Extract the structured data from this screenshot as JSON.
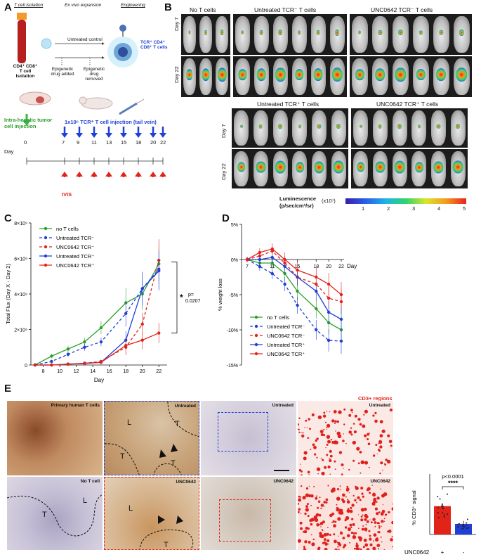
{
  "panelA": {
    "label": "A",
    "headers": {
      "isolation": "T cell isolation",
      "expansion": "Ex vivo expansion",
      "engineering": "Engineering"
    },
    "cd4_iso": "CD4⁺ CD8⁺ T cell Isolation",
    "untreated_control": "Untreated control",
    "drug_added": "Epigenetic drug added",
    "drug_removed": "Epigenetic drug removed",
    "tcr_cells": "TCR⁺ CD4⁺ CD8⁺ T cells",
    "intra_hepatic": "Intra-hepatic tumor cell injection",
    "injection": "1x10⁶ TCR⁺ T cell injection (tail vein)",
    "day_label": "Day",
    "days": [
      "0",
      "7",
      "9",
      "11",
      "13",
      "15",
      "18",
      "20",
      "22"
    ],
    "ivis": "IVIS"
  },
  "panelB": {
    "label": "B",
    "groups_top": [
      "No T cells",
      "Untreated TCR⁻ T cells",
      "UNC0642 TCR⁻ T cells"
    ],
    "groups_bottom": [
      "Untreated TCR⁺ T cells",
      "UNC0642 TCR⁺ T cells"
    ],
    "day7": "Day 7",
    "day22": "Day 22",
    "colorbar_title": "Luminescence",
    "colorbar_unit": "(p/sec/cm²/sr)",
    "colorbar_scale": "(x10⁷)",
    "colorbar_ticks": [
      "1",
      "2",
      "3",
      "4",
      "5"
    ]
  },
  "panelC": {
    "label": "C",
    "chart_data": {
      "type": "line",
      "ylabel": "Total Flux (Day X - Day 2)",
      "xlabel": "Day",
      "x": [
        7,
        9,
        11,
        13,
        15,
        18,
        20,
        22
      ],
      "xticks": [
        "8",
        "10",
        "12",
        "14",
        "16",
        "18",
        "20",
        "22"
      ],
      "xlim": [
        6.5,
        23
      ],
      "ylim": [
        0,
        8000000000
      ],
      "yticks": [
        "0",
        "2×10⁹",
        "4×10⁹",
        "6×10⁹",
        "8×10⁹"
      ],
      "legend": "top-left",
      "annotation": {
        "star": "*",
        "p": "p=",
        "pval": "0.0207"
      },
      "series": [
        {
          "name": "no T cells",
          "color": "#2aa02a",
          "dash": false,
          "values": [
            0,
            500000000,
            900000000,
            1300000000,
            2100000000,
            3500000000,
            4000000000,
            5700000000
          ]
        },
        {
          "name": "Untreated TCR⁻",
          "color": "#1f3fd6",
          "dash": true,
          "values": [
            0,
            200000000,
            600000000,
            1000000000,
            1300000000,
            2900000000,
            4300000000,
            5400000000
          ]
        },
        {
          "name": "UNC0642 TCR⁻",
          "color": "#e2231a",
          "dash": true,
          "values": [
            0,
            0,
            50000000,
            100000000,
            200000000,
            1000000000,
            2300000000,
            5900000000
          ]
        },
        {
          "name": "Untreated TCR⁺",
          "color": "#1f3fd6",
          "dash": false,
          "values": [
            0,
            0,
            50000000,
            100000000,
            150000000,
            1400000000,
            4300000000,
            5300000000
          ]
        },
        {
          "name": "UNC0642 TCR⁺",
          "color": "#e2231a",
          "dash": false,
          "values": [
            0,
            0,
            50000000,
            80000000,
            150000000,
            1100000000,
            1400000000,
            1800000000
          ]
        }
      ]
    }
  },
  "panelD": {
    "label": "D",
    "chart_data": {
      "type": "line",
      "ylabel": "% weight loss",
      "xlabel": "Day",
      "x": [
        7,
        9,
        11,
        13,
        15,
        18,
        20,
        22
      ],
      "xticks": [
        "7",
        "11",
        "15",
        "18",
        "20",
        "22"
      ],
      "ylim": [
        -15,
        5
      ],
      "yticks": [
        "5%",
        "0%",
        "-5%",
        "-10%",
        "-15%"
      ],
      "legend": "bottom-left",
      "series": [
        {
          "name": "no T cells",
          "color": "#2aa02a",
          "dash": false,
          "values": [
            0,
            -0.5,
            -0.5,
            -2,
            -4.5,
            -7,
            -9,
            -10
          ]
        },
        {
          "name": "Untreated TCR⁻",
          "color": "#1f3fd6",
          "dash": true,
          "values": [
            0,
            -1,
            -2,
            -3.5,
            -6.5,
            -10,
            -11.5,
            -11.6
          ]
        },
        {
          "name": "UNC0642 TCR⁻",
          "color": "#e2231a",
          "dash": true,
          "values": [
            0,
            0.5,
            1.2,
            -0.5,
            -2.5,
            -3.5,
            -5.5,
            -6
          ]
        },
        {
          "name": "Untreated TCR⁺",
          "color": "#1f3fd6",
          "dash": false,
          "values": [
            0,
            0,
            0.3,
            -1,
            -2.5,
            -4.5,
            -7.5,
            -8.5
          ]
        },
        {
          "name": "UNC0642 TCR⁺",
          "color": "#e2231a",
          "dash": false,
          "values": [
            0,
            1,
            1.5,
            0,
            -1.5,
            -2.5,
            -3.5,
            -5
          ]
        }
      ]
    }
  },
  "panelE": {
    "label": "E",
    "tiles": {
      "primary": "Primary human T cells",
      "notcell": "No T cell",
      "untreated": "Untreated",
      "unc": "UNC0642",
      "cd3": "CD3+ regions",
      "T": "T",
      "L": "L"
    },
    "bar": {
      "ylabel": "% CD3⁺ signal",
      "p": "p<0.0001",
      "stars": "****",
      "xlabel": "UNC0642",
      "groups": [
        "+",
        "-"
      ],
      "chart_data": {
        "type": "bar",
        "categories": [
          "+",
          "-"
        ],
        "values": [
          7.5,
          2.8
        ],
        "colors": [
          "#e2231a",
          "#1f3fd6"
        ],
        "ylim": [
          0,
          16
        ]
      }
    }
  }
}
